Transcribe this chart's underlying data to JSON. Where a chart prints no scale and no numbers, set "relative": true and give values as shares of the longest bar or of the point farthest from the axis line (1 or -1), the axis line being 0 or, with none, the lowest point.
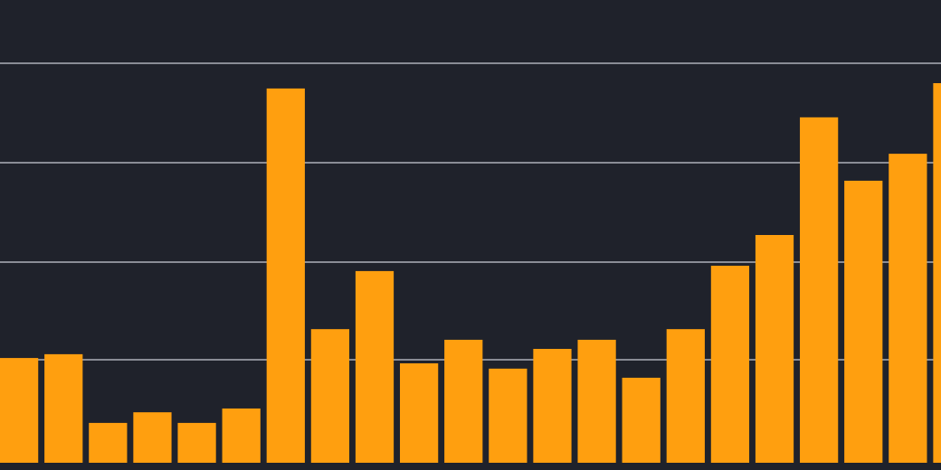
{
  "chart_data": {
    "type": "bar",
    "relative": true,
    "grid": true,
    "color": "#ff9f0f",
    "categories": [
      null,
      null,
      null,
      null,
      null,
      null,
      null,
      null,
      null,
      null,
      null,
      null,
      null,
      null,
      null,
      null,
      null,
      null,
      null,
      null,
      null,
      null
    ],
    "values": [
      0.276,
      0.286,
      0.105,
      0.133,
      0.105,
      0.143,
      0.986,
      0.352,
      0.505,
      0.262,
      0.324,
      0.248,
      0.3,
      0.324,
      0.224,
      0.352,
      0.519,
      0.6,
      0.91,
      0.743,
      0.814,
      1
    ]
  }
}
